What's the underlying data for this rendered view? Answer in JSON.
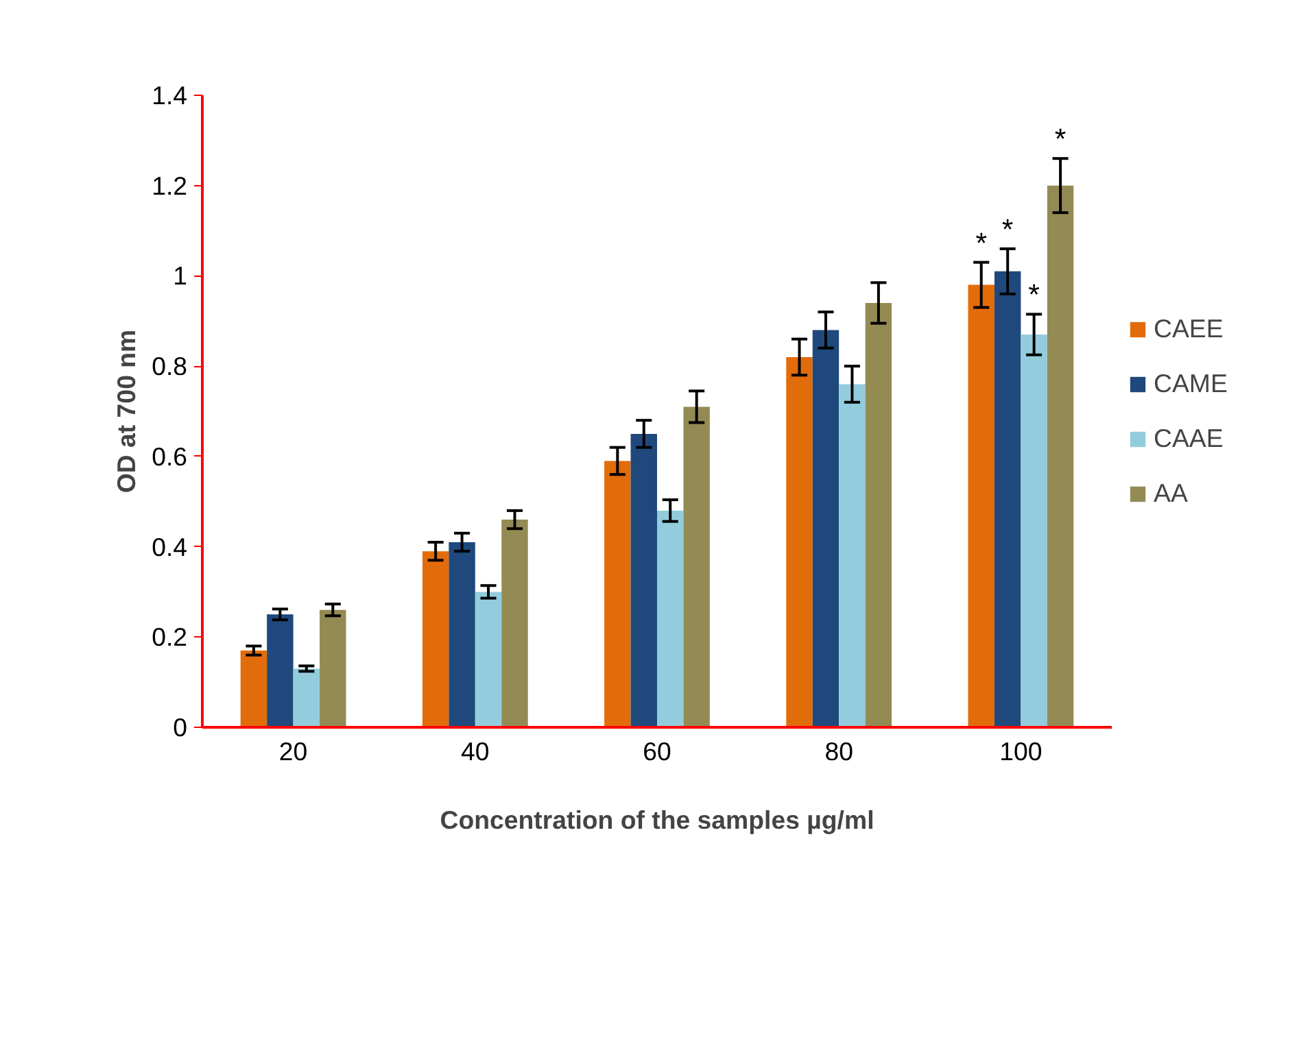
{
  "chart_data": {
    "type": "bar",
    "xlabel": "Concentration of the samples µg/ml",
    "ylabel": "OD at 700 nm",
    "categories": [
      "20",
      "40",
      "60",
      "80",
      "100"
    ],
    "series": [
      {
        "name": "CAEE",
        "color": "#e36c0a",
        "values": [
          0.17,
          0.39,
          0.59,
          0.82,
          0.98
        ],
        "errors": [
          0.01,
          0.02,
          0.03,
          0.04,
          0.05
        ],
        "value_labels": [
          null,
          null,
          null,
          null,
          "*"
        ]
      },
      {
        "name": "CAME",
        "color": "#1f497d",
        "values": [
          0.25,
          0.41,
          0.65,
          0.88,
          1.01
        ],
        "errors": [
          0.012,
          0.02,
          0.03,
          0.04,
          0.05
        ],
        "value_labels": [
          null,
          null,
          null,
          null,
          "*"
        ]
      },
      {
        "name": "CAAE",
        "color": "#93cddd",
        "values": [
          0.13,
          0.3,
          0.48,
          0.76,
          0.87
        ],
        "errors": [
          0.006,
          0.014,
          0.024,
          0.04,
          0.045
        ],
        "value_labels": [
          null,
          null,
          null,
          null,
          "*"
        ]
      },
      {
        "name": "AA",
        "color": "#948a54",
        "values": [
          0.26,
          0.46,
          0.71,
          0.94,
          1.2
        ],
        "errors": [
          0.013,
          0.02,
          0.035,
          0.045,
          0.06
        ],
        "value_labels": [
          null,
          null,
          null,
          null,
          "*"
        ]
      }
    ],
    "ylim": [
      0,
      1.4
    ],
    "yticks": [
      0,
      0.2,
      0.4,
      0.6,
      0.8,
      1,
      1.2,
      1.4
    ],
    "grid": false,
    "legend": "right"
  }
}
